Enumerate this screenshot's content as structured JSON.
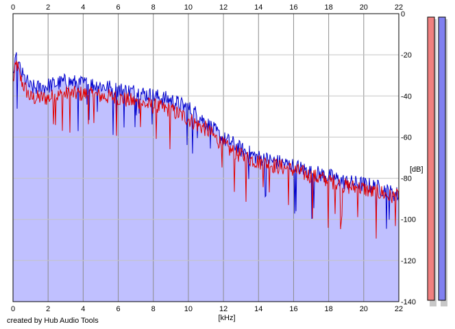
{
  "chart_data": {
    "type": "area",
    "xlabel": "[kHz]",
    "ylabel": "[dB]",
    "xlim": [
      0,
      22
    ],
    "ylim": [
      -140,
      0
    ],
    "x_ticks": [
      "0",
      "2",
      "4",
      "6",
      "8",
      "10",
      "12",
      "14",
      "16",
      "18",
      "20",
      "22"
    ],
    "y_ticks": [
      "0",
      "-20",
      "-40",
      "-60",
      "-80",
      "-100",
      "-120",
      "-140"
    ],
    "grid": true,
    "series": [
      {
        "channel": "left",
        "color": "#e00000",
        "x": [
          0,
          0.2,
          0.4,
          0.6,
          0.8,
          1,
          1.5,
          2,
          2.5,
          3,
          4,
          5,
          6,
          7,
          8,
          9,
          10,
          10.5,
          11,
          11.5,
          12,
          12.5,
          13,
          14,
          15,
          16,
          17,
          18,
          19,
          20,
          20.5,
          21,
          21.5,
          22
        ],
        "values": [
          -33,
          -24,
          -31,
          -35,
          -38,
          -41,
          -41,
          -41,
          -40,
          -39,
          -39,
          -40,
          -41,
          -43,
          -45,
          -47,
          -51,
          -54,
          -56,
          -60,
          -64,
          -67,
          -69,
          -72,
          -74,
          -76,
          -79,
          -81,
          -84,
          -85,
          -87,
          -87,
          -89,
          -89
        ]
      },
      {
        "channel": "right",
        "color": "#0000cc",
        "x": [
          0,
          0.2,
          0.4,
          0.6,
          0.8,
          1,
          1.5,
          2,
          2.5,
          3,
          4,
          5,
          6,
          7,
          8,
          9,
          10,
          10.5,
          11,
          11.5,
          12,
          12.5,
          13,
          14,
          15,
          16,
          17,
          18,
          19,
          20,
          20.5,
          21,
          21.5,
          22
        ],
        "values": [
          -30,
          -22,
          -27,
          -31,
          -33,
          -36,
          -36,
          -35,
          -34,
          -33,
          -34,
          -35,
          -37,
          -38,
          -40,
          -42,
          -46,
          -49,
          -53,
          -57,
          -61,
          -63,
          -66,
          -70,
          -72,
          -74,
          -77,
          -79,
          -82,
          -83,
          -84,
          -85,
          -87,
          -88
        ]
      }
    ],
    "fill_color": "#c0c0ff",
    "level_meters": [
      {
        "channel": "left",
        "color": "#f08080"
      },
      {
        "channel": "right",
        "color": "#8080f0"
      }
    ]
  },
  "footer": {
    "credit": "created by Hub Audio Tools"
  }
}
